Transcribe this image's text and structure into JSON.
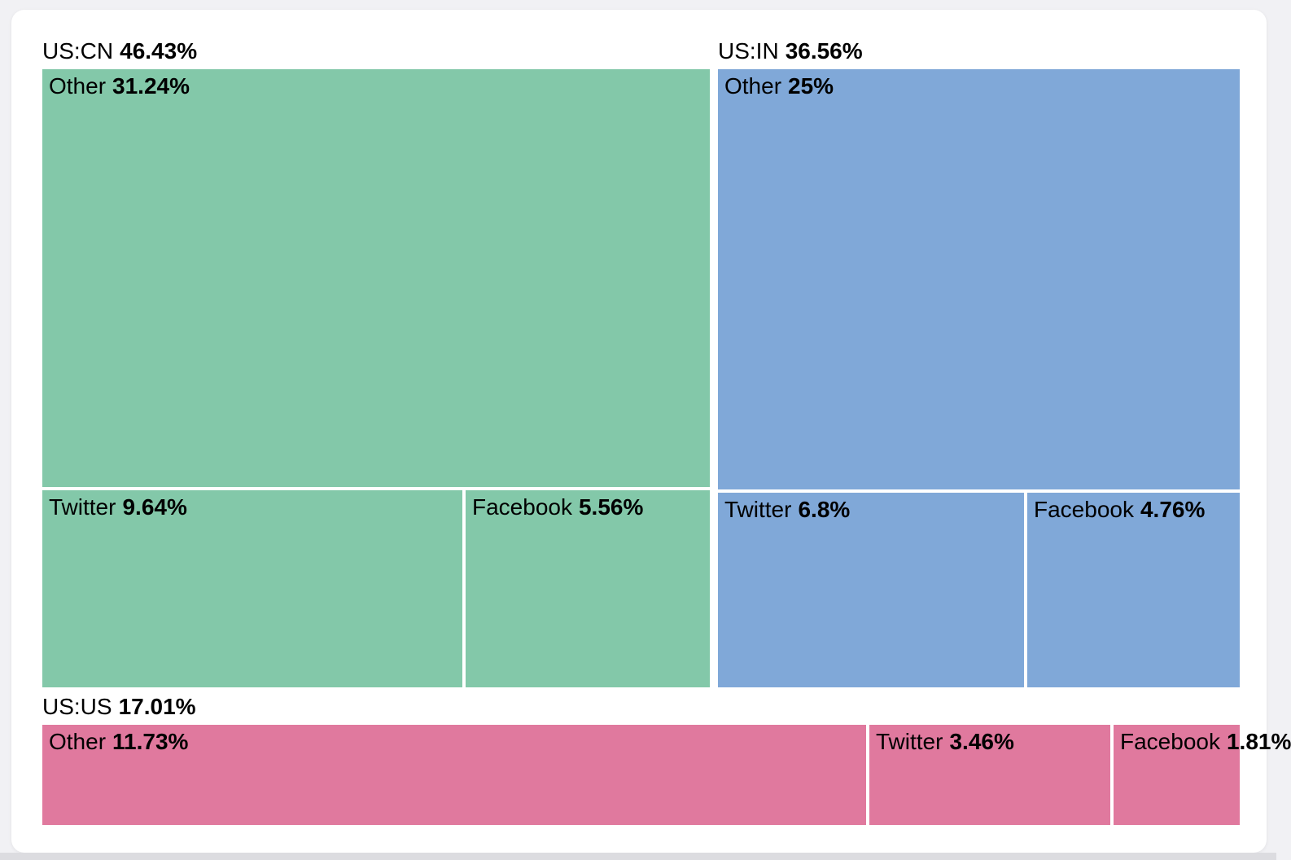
{
  "chart_data": {
    "type": "treemap",
    "title": "",
    "unit": "%",
    "layout": "squarify",
    "label_position": "top-left",
    "legend": "none",
    "grid": false,
    "groups": [
      {
        "label": "US:CN",
        "percent_text": "46.43%",
        "value": 46.43,
        "color": "#83c8a9",
        "children": [
          {
            "label": "Other",
            "percent_text": "31.24%",
            "value": 31.24
          },
          {
            "label": "Twitter",
            "percent_text": "9.64%",
            "value": 9.64
          },
          {
            "label": "Facebook",
            "percent_text": "5.56%",
            "value": 5.56
          }
        ]
      },
      {
        "label": "US:IN",
        "percent_text": "36.56%",
        "value": 36.56,
        "color": "#80a8d8",
        "children": [
          {
            "label": "Other",
            "percent_text": "25%",
            "value": 25
          },
          {
            "label": "Twitter",
            "percent_text": "6.8%",
            "value": 6.8
          },
          {
            "label": "Facebook",
            "percent_text": "4.76%",
            "value": 4.76
          }
        ]
      },
      {
        "label": "US:US",
        "percent_text": "17.01%",
        "value": 17.01,
        "color": "#e0799e",
        "children": [
          {
            "label": "Other",
            "percent_text": "11.73%",
            "value": 11.73
          },
          {
            "label": "Twitter",
            "percent_text": "3.46%",
            "value": 3.46
          },
          {
            "label": "Facebook",
            "percent_text": "1.81%",
            "value": 1.81
          }
        ]
      }
    ]
  },
  "colors": {
    "page_background": "#f1f1f4",
    "card_background": "#ffffff",
    "bottom_strip": "#dcdce0",
    "text": "#000000",
    "group_uscn": "#83c8a9",
    "group_usin": "#80a8d8",
    "group_usus": "#e0799e"
  }
}
